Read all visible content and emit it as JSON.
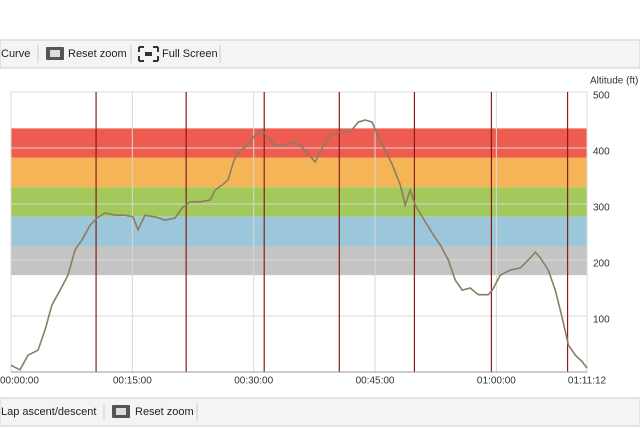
{
  "toolbar": {
    "items": [
      "Curve",
      "Reset zoom",
      "Full Screen"
    ]
  },
  "chart_data": {
    "type": "line",
    "y_axis_label": "Altitude (ft)",
    "x": [
      0,
      67,
      126,
      200,
      252,
      304,
      364,
      423,
      475,
      527,
      586,
      638,
      698,
      772,
      846,
      905,
      942,
      994,
      1069,
      1143,
      1217,
      1269,
      1328,
      1403,
      1477,
      1514,
      1566,
      1610,
      1655,
      1700,
      1759,
      1811,
      1863,
      1907,
      1959,
      2034,
      2108,
      2182,
      2256,
      2308,
      2367,
      2442,
      2516,
      2575,
      2627,
      2679,
      2724,
      2776,
      2828,
      2887,
      2924,
      2961,
      2998,
      3073,
      3132,
      3184,
      3243,
      3295,
      3347,
      3406,
      3466,
      3540,
      3570,
      3629,
      3703,
      3778,
      3837,
      3889,
      3926,
      3985,
      4037,
      4089,
      4134,
      4186,
      4238,
      4272
    ],
    "values": [
      12,
      4,
      30,
      39,
      75,
      120,
      146,
      173,
      218,
      236,
      262,
      275,
      284,
      280,
      280,
      277,
      254,
      280,
      277,
      271,
      275,
      293,
      304,
      304,
      307,
      325,
      334,
      343,
      379,
      396,
      405,
      423,
      432,
      418,
      405,
      405,
      411,
      396,
      375,
      400,
      423,
      429,
      429,
      446,
      450,
      446,
      418,
      396,
      370,
      334,
      298,
      325,
      298,
      268,
      245,
      227,
      200,
      164,
      146,
      150,
      138,
      138,
      146,
      173,
      182,
      186,
      200,
      214,
      204,
      182,
      146,
      96,
      48,
      30,
      18,
      7
    ],
    "color": "#8a7d63",
    "xlim": [
      0,
      4272
    ],
    "xticks": [
      {
        "value": 0,
        "label": "00:00:00"
      },
      {
        "value": 900,
        "label": "00:15:00"
      },
      {
        "value": 1800,
        "label": "00:30:00"
      },
      {
        "value": 2700,
        "label": "00:45:00"
      },
      {
        "value": 3600,
        "label": "01:00:00"
      },
      {
        "value": 4272,
        "label": "01:11:12"
      }
    ],
    "ylim": [
      0,
      500
    ],
    "yticks": [
      100,
      200,
      300,
      400,
      500
    ],
    "grid": true,
    "zones": [
      {
        "from": 173,
        "to": 225,
        "color": "#c4c4c4"
      },
      {
        "from": 225,
        "to": 278,
        "color": "#9cc6d9"
      },
      {
        "from": 278,
        "to": 330,
        "color": "#a3c95b"
      },
      {
        "from": 330,
        "to": 383,
        "color": "#f5b557"
      },
      {
        "from": 383,
        "to": 435,
        "color": "#ee5b4f"
      }
    ],
    "laps": [
      631,
      1299,
      1878,
      2435,
      2992,
      3563,
      4128
    ],
    "lap_color": "#8b1a1a"
  },
  "bottom_toolbar": {
    "items": [
      "Lap ascent/descent",
      "Reset zoom"
    ]
  }
}
